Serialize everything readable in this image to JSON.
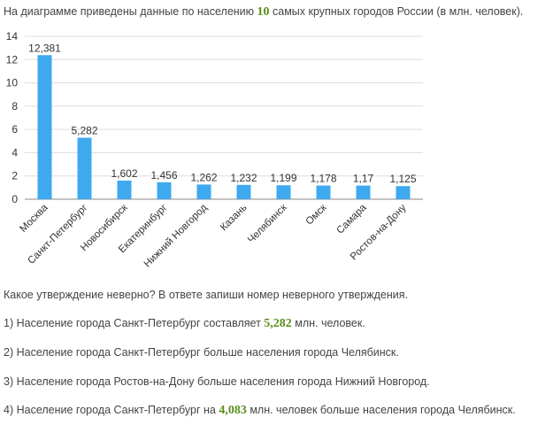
{
  "intro": {
    "before": "На диаграмме приведены данные по населению ",
    "number": "10",
    "after": " самых крупных городов России (в млн. человек)."
  },
  "chart_data": {
    "type": "bar",
    "title": "",
    "xlabel": "",
    "ylabel": "",
    "ylim": [
      0,
      14
    ],
    "yticks": [
      "0",
      "2",
      "4",
      "6",
      "8",
      "10",
      "12",
      "14"
    ],
    "grid": true,
    "bar_color": "#3fa9f0",
    "categories": [
      "Москва",
      "Санкт-Петербург",
      "Новосибирск",
      "Екатеринбург",
      "Нижний Новгород",
      "Казань",
      "Челябинск",
      "Омск",
      "Самара",
      "Ростов-на-Дону"
    ],
    "values": [
      12.381,
      5.282,
      1.602,
      1.456,
      1.262,
      1.232,
      1.199,
      1.178,
      1.17,
      1.125
    ],
    "data_labels": [
      "12,381",
      "5,282",
      "1,602",
      "1,456",
      "1,262",
      "1,232",
      "1,199",
      "1,178",
      "1,17",
      "1,125"
    ]
  },
  "question": "Какое утверждение неверно? В ответе запиши номер неверного утверждения.",
  "statements": [
    {
      "before": "1) Население города Санкт-Петербург составляет ",
      "number": "5,282",
      "after": " млн. человек."
    },
    {
      "before": "2) Население города Санкт-Петербург больше населения города Челябинск.",
      "number": "",
      "after": ""
    },
    {
      "before": "3) Население города Ростов-на-Дону больше населения города Нижний Новгород.",
      "number": "",
      "after": ""
    },
    {
      "before": "4) Население города Санкт-Петербург на ",
      "number": "4,083",
      "after": " млн. человек больше населения города Челябинск."
    }
  ]
}
